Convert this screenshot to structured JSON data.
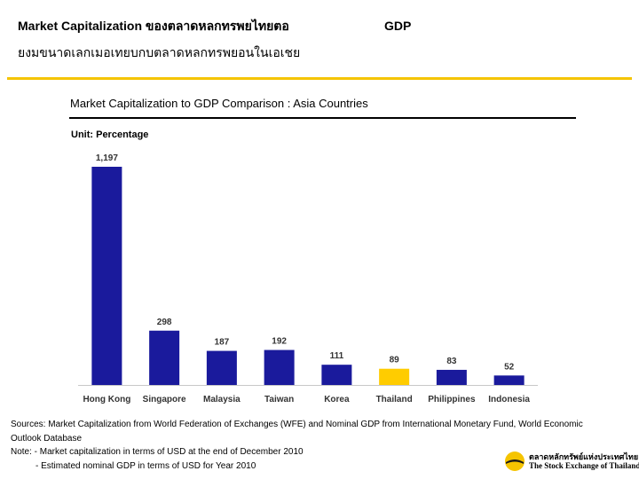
{
  "slide": {
    "title_line1": "Market Capitalization ของตลาดหลกทรพยไทยตอ",
    "title_gdp": "GDP",
    "title_line2": "ยงมขนาดเลกเมอเทยบกบตลาดหลกทรพยอนในเอเชย"
  },
  "chart_data": {
    "type": "bar",
    "title": "Market Capitalization to GDP Comparison : Asia Countries",
    "unit": "Unit: Percentage",
    "categories": [
      "Hong Kong",
      "Singapore",
      "Malaysia",
      "Taiwan",
      "Korea",
      "Thailand",
      "Philippines",
      "Indonesia"
    ],
    "values": [
      1197,
      298,
      187,
      192,
      111,
      89,
      83,
      52
    ],
    "value_labels": [
      "1,197",
      "298",
      "187",
      "192",
      "111",
      "89",
      "83",
      "52"
    ],
    "highlight_category": "Thailand",
    "colors": {
      "default_bar": "#1a1a9c",
      "highlight_bar": "#ffcc00",
      "label_text": "#333333",
      "baseline": "#c8c8c8"
    },
    "ylim": [
      0,
      1250
    ],
    "grid": false,
    "legend": "none"
  },
  "notes": {
    "sources_line1": "Sources: Market Capitalization from World Federation of Exchanges (WFE) and Nominal GDP from International Monetary Fund, World Economic",
    "sources_line2": "Outlook Database",
    "note_line1": "Note: - Market capitalization in terms of USD at the end of December 2010",
    "note_line2": "- Estimated nominal GDP in terms of USD for Year 2010"
  },
  "logo": {
    "thai_text": "ตลาดหลักทรัพย์แห่งประเทศไทย",
    "english_text": "The Stock Exchange of Thailand"
  }
}
